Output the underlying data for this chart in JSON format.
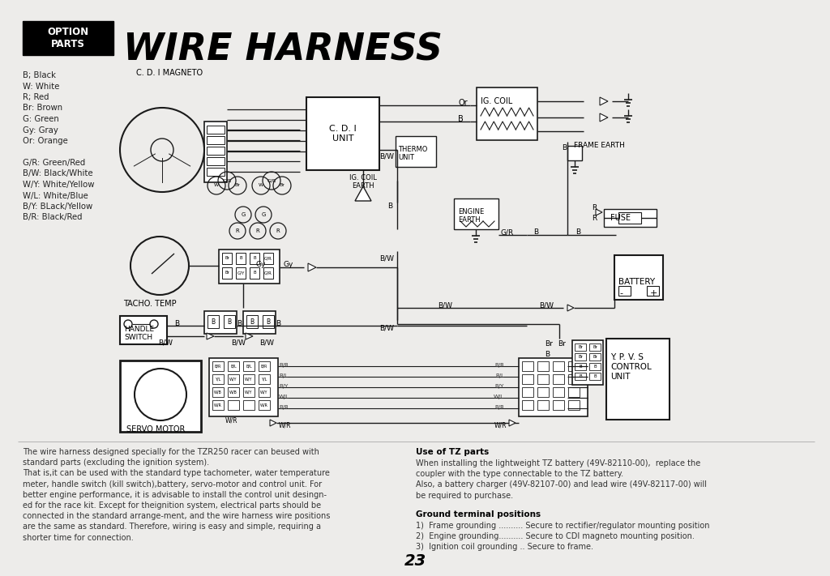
{
  "title": "WIRE HARNESS",
  "background_color": "#edecea",
  "page_number": "23",
  "color_legend": [
    "B; Black",
    "W: White",
    "R; Red",
    "Br: Brown",
    "G: Green",
    "Gy: Gray",
    "Or: Orange",
    "",
    "G/R: Green/Red",
    "B/W: Black/White",
    "W/Y: White/Yellow",
    "W/L: White/Blue",
    "B/Y: BLack/Yellow",
    "B/R: Black/Red"
  ],
  "bottom_left_text": [
    "The wire harness designed specially for the TZR250 racer can beused with",
    "standard parts (excluding the ignition system).",
    "That is,it can be used with the standard type tachometer, water temperature",
    "meter, handle switch (kill switch),battery, servo-motor and control unit. For",
    "better engine performance, it is advisable to install the control unit desingn-",
    "ed for the race kit. Except for theignition system, electrical parts should be",
    "connected in the standard arrange-ment, and the wire harness wire positions",
    "are the same as standard. Therefore, wiring is easy and simple, requiring a",
    "shorter time for connection."
  ],
  "bottom_right_title": "Use of TZ parts",
  "bottom_right_text": [
    "When installing the lightweight TZ battery (49V-82110-00),  replace the",
    "coupler with the type connectable to the TZ battery.",
    "Also, a battery charger (49V-82107-00) and lead wire (49V-82117-00) will",
    "be required to purchase."
  ],
  "ground_terminal_title": "Ground terminal positions",
  "ground_terminal_items": [
    "1)  Frame grounding .......... Secure to rectifier/regulator mounting position",
    "2)  Engine grounding.......... Secure to CDI magneto mounting position.",
    "3)  Ignition coil grounding .. Secure to frame."
  ]
}
